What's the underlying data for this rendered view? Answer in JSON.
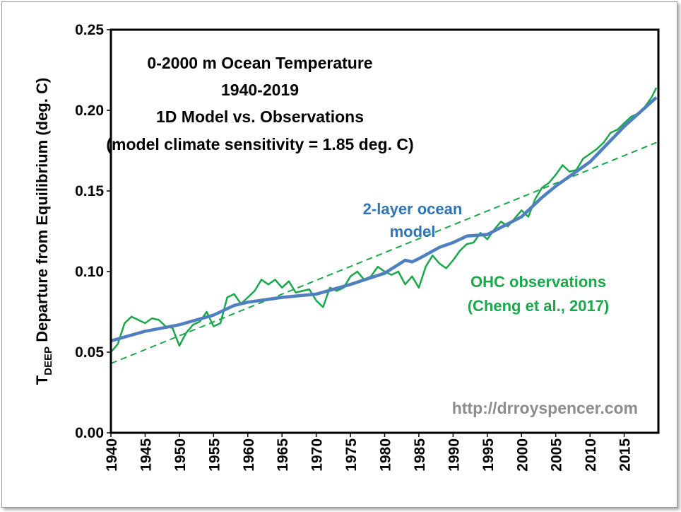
{
  "chart_data": {
    "type": "line",
    "title_lines": [
      "0-2000 m Ocean Temperature",
      "1940-2019",
      "1D Model vs. Observations",
      "(model climate sensitivity = 1.85 deg. C)"
    ],
    "ylabel": {
      "main": "T",
      "subscript": "DEEP",
      "rest": " Departure from Equilibrium (deg. C)"
    },
    "xlabel": "",
    "xlim": [
      1940,
      2020
    ],
    "ylim": [
      0,
      0.25
    ],
    "yticks": [
      "0.00",
      "0.05",
      "0.10",
      "0.15",
      "0.20",
      "0.25"
    ],
    "xticks": [
      "1940",
      "1945",
      "1950",
      "1955",
      "1960",
      "1965",
      "1970",
      "1975",
      "1980",
      "1985",
      "1990",
      "1995",
      "2000",
      "2005",
      "2010",
      "2015"
    ],
    "grid": false,
    "watermark": "http://drroyspencer.com",
    "series": [
      {
        "name": "OHC observations (Cheng et al., 2017)",
        "label_lines": [
          "OHC observations",
          "(Cheng et al., 2017)"
        ],
        "color": "#1aa84a",
        "style": "solid",
        "x": [
          1940,
          1941,
          1942,
          1943,
          1944,
          1945,
          1946,
          1947,
          1948,
          1949,
          1950,
          1951,
          1952,
          1953,
          1954,
          1955,
          1956,
          1957,
          1958,
          1959,
          1960,
          1961,
          1962,
          1963,
          1964,
          1965,
          1966,
          1967,
          1968,
          1969,
          1970,
          1971,
          1972,
          1973,
          1974,
          1975,
          1976,
          1977,
          1978,
          1979,
          1980,
          1981,
          1982,
          1983,
          1984,
          1985,
          1986,
          1987,
          1988,
          1989,
          1990,
          1991,
          1992,
          1993,
          1994,
          1995,
          1996,
          1997,
          1998,
          1999,
          2000,
          2001,
          2002,
          2003,
          2004,
          2005,
          2006,
          2007,
          2008,
          2009,
          2010,
          2011,
          2012,
          2013,
          2014,
          2015,
          2016,
          2017,
          2018,
          2019,
          2019.7
        ],
        "y": [
          0.05,
          0.055,
          0.068,
          0.072,
          0.07,
          0.068,
          0.071,
          0.07,
          0.066,
          0.065,
          0.054,
          0.062,
          0.067,
          0.069,
          0.075,
          0.066,
          0.068,
          0.084,
          0.086,
          0.08,
          0.084,
          0.088,
          0.095,
          0.092,
          0.095,
          0.09,
          0.094,
          0.087,
          0.088,
          0.089,
          0.082,
          0.078,
          0.09,
          0.088,
          0.09,
          0.097,
          0.1,
          0.095,
          0.097,
          0.103,
          0.1,
          0.098,
          0.1,
          0.092,
          0.097,
          0.09,
          0.103,
          0.11,
          0.105,
          0.102,
          0.107,
          0.113,
          0.117,
          0.118,
          0.124,
          0.12,
          0.126,
          0.131,
          0.128,
          0.133,
          0.138,
          0.134,
          0.145,
          0.152,
          0.155,
          0.16,
          0.166,
          0.162,
          0.163,
          0.17,
          0.173,
          0.176,
          0.18,
          0.186,
          0.188,
          0.192,
          0.196,
          0.198,
          0.202,
          0.208,
          0.214
        ]
      },
      {
        "name": "2-layer ocean model",
        "label_lines": [
          "2-layer ocean",
          "model"
        ],
        "color": "#4f7fbf",
        "style": "solid",
        "x": [
          1940,
          1945,
          1950,
          1955,
          1958,
          1960,
          1965,
          1970,
          1975,
          1980,
          1983,
          1984,
          1985,
          1988,
          1990,
          1992,
          1995,
          2000,
          2003,
          2005,
          2010,
          2015,
          2019.7
        ],
        "y": [
          0.057,
          0.063,
          0.067,
          0.073,
          0.079,
          0.081,
          0.084,
          0.086,
          0.092,
          0.099,
          0.107,
          0.106,
          0.108,
          0.115,
          0.118,
          0.122,
          0.123,
          0.134,
          0.146,
          0.153,
          0.168,
          0.19,
          0.208
        ]
      },
      {
        "name": "",
        "color": "#1aa84a",
        "style": "dashed",
        "x": [
          1940,
          2019.7
        ],
        "y": [
          0.043,
          0.18
        ]
      }
    ]
  }
}
